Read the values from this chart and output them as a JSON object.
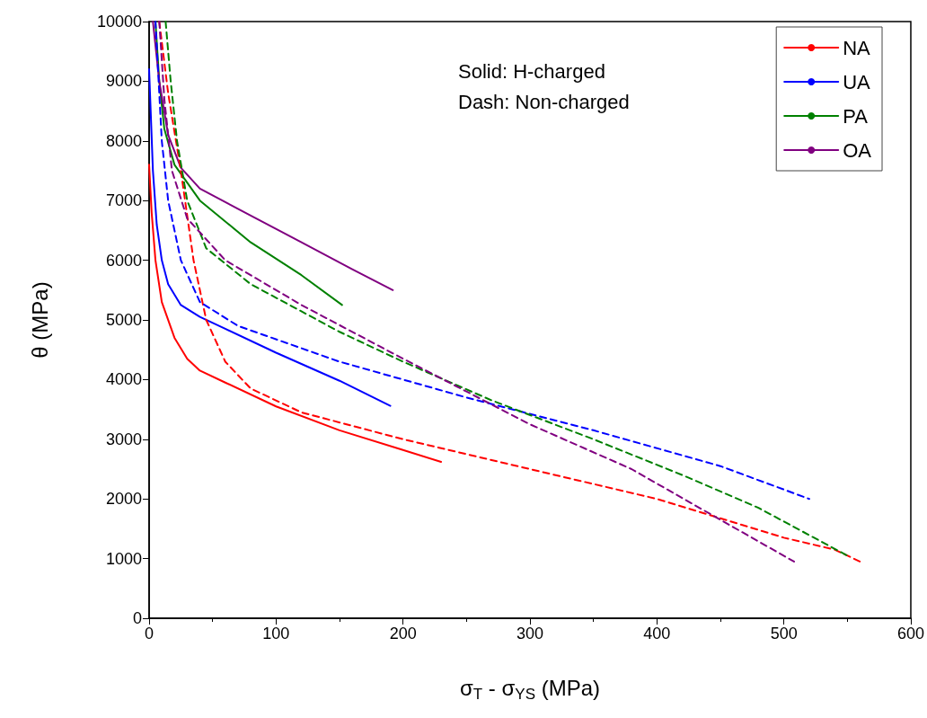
{
  "chart_data": {
    "type": "line",
    "xlabel": "σ$_{T}$ - σ$_{YS}$ (MPa)",
    "ylabel": "θ (MPa)",
    "annotations": [
      "Solid: H-charged",
      "Dash: Non-charged"
    ],
    "xlim": [
      0,
      600
    ],
    "xticks": [
      0,
      100,
      200,
      300,
      400,
      500,
      600
    ],
    "ylim": [
      0,
      10000
    ],
    "yticks": [
      0,
      1000,
      2000,
      3000,
      4000,
      5000,
      6000,
      7000,
      8000,
      9000,
      10000
    ],
    "grid": false,
    "legend": "top right",
    "marker": "none",
    "series": [
      {
        "name": "NA",
        "color": "#ff0000",
        "line_style": "solid",
        "x": [
          0,
          2,
          5,
          10,
          20,
          30,
          40,
          60,
          100,
          150,
          200,
          230
        ],
        "values": [
          7600,
          6800,
          6000,
          5300,
          4700,
          4350,
          4150,
          3950,
          3550,
          3150,
          2820,
          2620
        ]
      },
      {
        "name": "UA",
        "color": "#0000ff",
        "line_style": "solid",
        "x": [
          0,
          3,
          6,
          10,
          15,
          25,
          40,
          60,
          100,
          150,
          190
        ],
        "values": [
          9200,
          7500,
          6600,
          6000,
          5600,
          5250,
          5050,
          4850,
          4450,
          3980,
          3560
        ]
      },
      {
        "name": "PA",
        "color": "#008000",
        "line_style": "solid",
        "x": [
          5,
          8,
          12,
          20,
          40,
          80,
          120,
          152
        ],
        "values": [
          10000,
          9000,
          8200,
          7600,
          7000,
          6300,
          5750,
          5250
        ]
      },
      {
        "name": "OA",
        "color": "#800080",
        "line_style": "solid",
        "x": [
          3,
          8,
          15,
          25,
          40,
          80,
          120,
          160,
          192
        ],
        "values": [
          10000,
          9000,
          8100,
          7550,
          7200,
          6750,
          6300,
          5850,
          5500
        ]
      },
      {
        "color": "#ff0000",
        "line_style": "dashed",
        "x": [
          8,
          15,
          25,
          35,
          45,
          60,
          80,
          120,
          200,
          300,
          400,
          500,
          540,
          560
        ],
        "values": [
          10000,
          8800,
          7500,
          6000,
          5000,
          4300,
          3850,
          3450,
          3000,
          2500,
          2000,
          1350,
          1150,
          950
        ]
      },
      {
        "color": "#0000ff",
        "line_style": "dashed",
        "x": [
          5,
          10,
          15,
          25,
          40,
          70,
          150,
          250,
          350,
          450,
          520
        ],
        "values": [
          10000,
          8000,
          7000,
          6000,
          5300,
          4900,
          4300,
          3700,
          3150,
          2550,
          2000
        ]
      },
      {
        "color": "#008000",
        "line_style": "dashed",
        "x": [
          13,
          17,
          22,
          30,
          45,
          80,
          150,
          200,
          270,
          350,
          420,
          480,
          550
        ],
        "values": [
          10000,
          9000,
          8000,
          7000,
          6200,
          5600,
          4800,
          4300,
          3650,
          3000,
          2400,
          1850,
          1050
        ]
      },
      {
        "color": "#800080",
        "line_style": "dashed",
        "x": [
          8,
          12,
          18,
          30,
          60,
          120,
          200,
          250,
          300,
          380,
          450,
          508
        ],
        "values": [
          10000,
          8700,
          7500,
          6700,
          6000,
          5250,
          4350,
          3800,
          3250,
          2500,
          1650,
          950
        ]
      }
    ]
  }
}
